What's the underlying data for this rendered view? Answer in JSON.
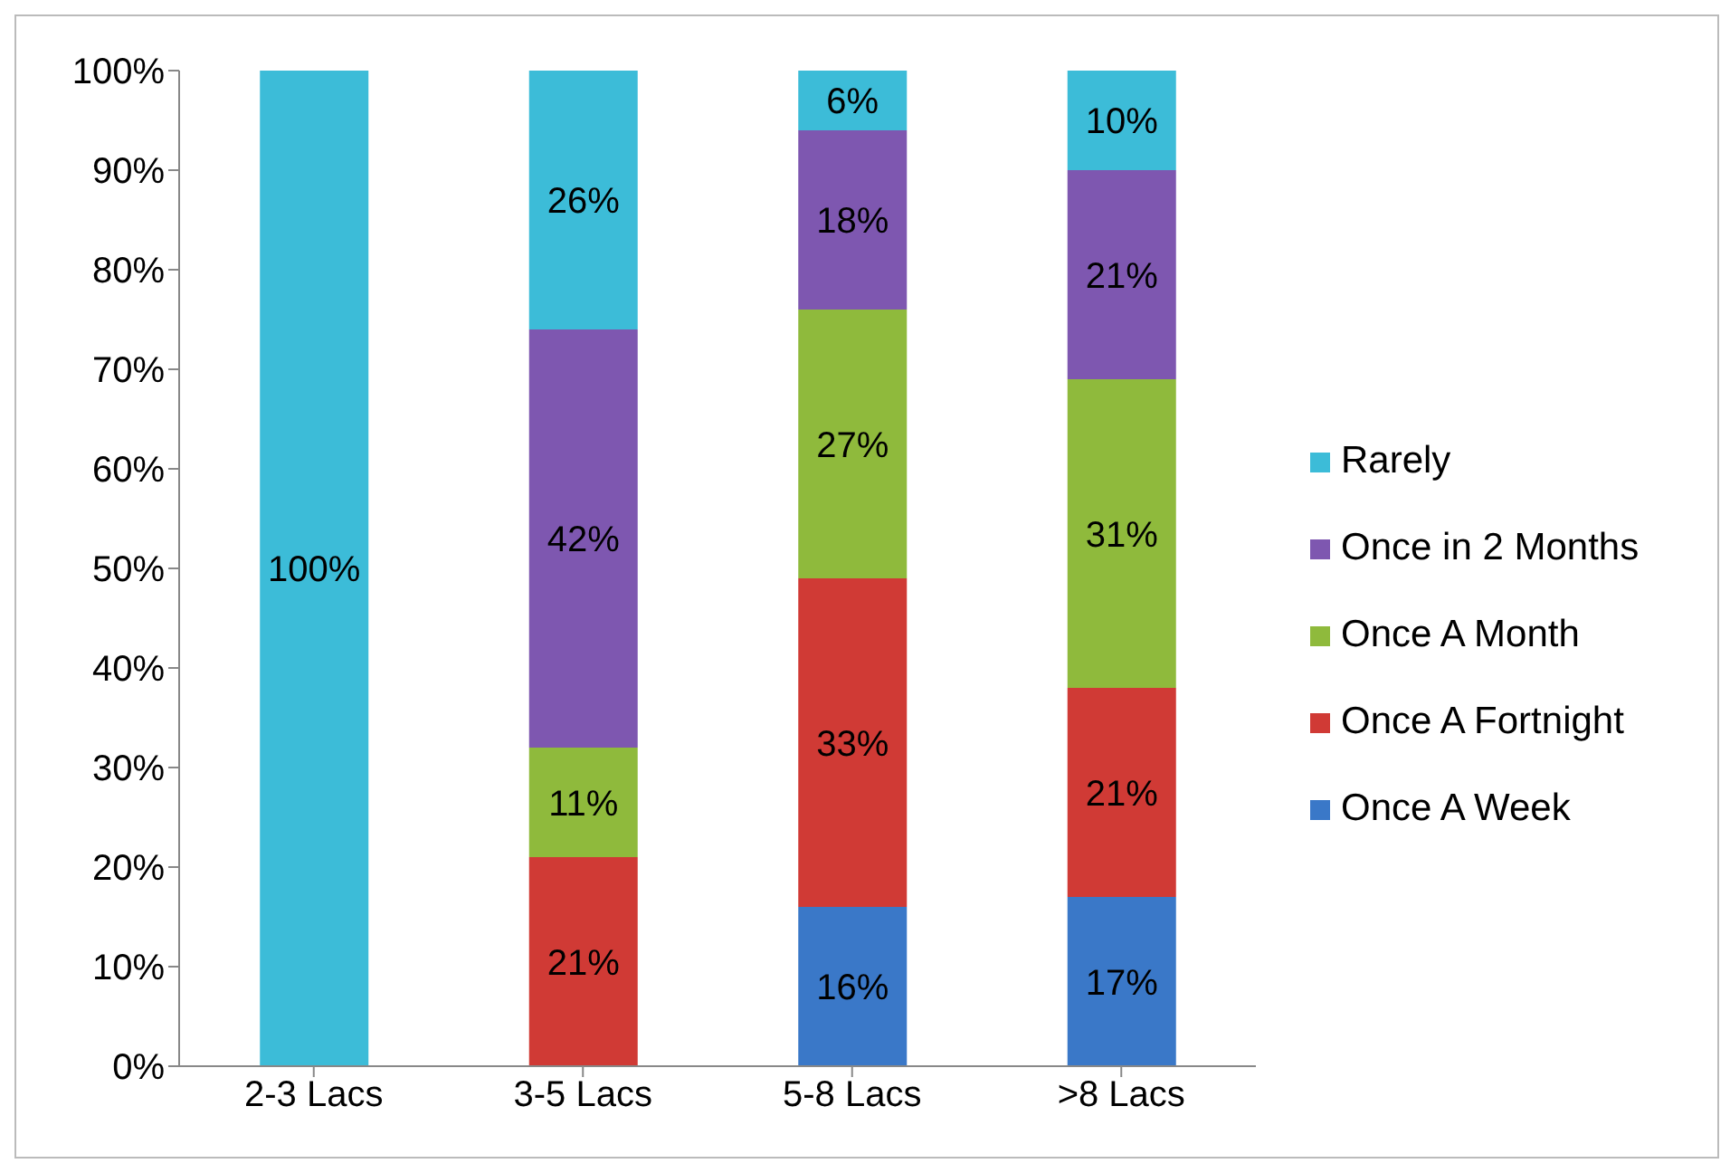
{
  "chart_data": {
    "type": "bar",
    "stacked": true,
    "categories": [
      "2-3 Lacs",
      "3-5 Lacs",
      "5-8 Lacs",
      ">8 Lacs"
    ],
    "series": [
      {
        "name": "Once A Week",
        "color": "#3a78c8",
        "values": [
          0,
          0,
          16,
          17
        ],
        "value_labels": [
          null,
          null,
          "16%",
          "17%"
        ]
      },
      {
        "name": "Once A Fortnight",
        "color": "#d03a35",
        "values": [
          0,
          21,
          33,
          21
        ],
        "value_labels": [
          null,
          "21%",
          "33%",
          "21%"
        ]
      },
      {
        "name": "Once A Month",
        "color": "#8fba3c",
        "values": [
          0,
          11,
          27,
          31
        ],
        "value_labels": [
          null,
          "11%",
          "27%",
          "31%"
        ]
      },
      {
        "name": "Once in 2 Months",
        "color": "#7e57b0",
        "values": [
          0,
          42,
          18,
          21
        ],
        "value_labels": [
          null,
          "42%",
          "18%",
          "21%"
        ]
      },
      {
        "name": "Rarely",
        "color": "#3cbcd8",
        "values": [
          100,
          26,
          6,
          10
        ],
        "value_labels": [
          "100%",
          "26%",
          "6%",
          "10%"
        ]
      }
    ],
    "ylim": [
      0,
      100
    ],
    "yticks": [
      {
        "value": 0,
        "label": "0%"
      },
      {
        "value": 10,
        "label": "10%"
      },
      {
        "value": 20,
        "label": "20%"
      },
      {
        "value": 30,
        "label": "30%"
      },
      {
        "value": 40,
        "label": "40%"
      },
      {
        "value": 50,
        "label": "50%"
      },
      {
        "value": 60,
        "label": "60%"
      },
      {
        "value": 70,
        "label": "70%"
      },
      {
        "value": 80,
        "label": "80%"
      },
      {
        "value": 90,
        "label": "90%"
      },
      {
        "value": 100,
        "label": "100%"
      }
    ],
    "grid": false,
    "legend": "right"
  }
}
